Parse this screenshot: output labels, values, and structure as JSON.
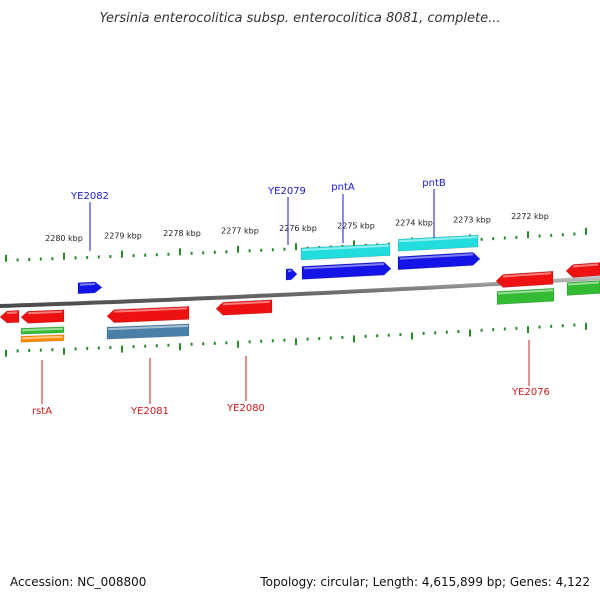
{
  "header": {
    "title": "Yersinia enterocolitica subsp. enterocolitica 8081, complete..."
  },
  "footer": {
    "accession": "Accession: NC_008800",
    "summary": "Topology: circular; Length: 4,615,899 bp; Genes: 4,122"
  },
  "colors": {
    "forward_gene": "#1414e6",
    "reverse_gene": "#ee1111",
    "cyan_feature": "#22dddd",
    "green_feature": "#33bb33",
    "orange_feature": "#ff8c00",
    "steel_feature": "#4a7fa8",
    "tick": "#2a8a2a",
    "backbone": "#808080",
    "label_forward": "#1a1acc",
    "label_reverse": "#cc1a1a"
  },
  "scale_labels": [
    "2280 kbp",
    "2279 kbp",
    "2278 kbp",
    "2277 kbp",
    "2276 kbp",
    "2275 kbp",
    "2274 kbp",
    "2273 kbp",
    "2272 kbp"
  ],
  "gene_labels": {
    "forward": [
      "YE2082",
      "YE2079",
      "pntA",
      "pntB"
    ],
    "reverse": [
      "rstA",
      "YE2081",
      "YE2080",
      "YE2076"
    ]
  }
}
